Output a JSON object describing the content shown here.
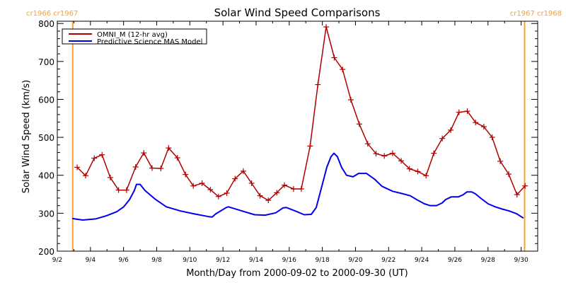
{
  "chart_data": {
    "type": "line",
    "title": "Solar Wind Speed Comparisons",
    "xlabel": "Month/Day from 2000-09-02 to 2000-09-30 (UT)",
    "ylabel": "Solar Wind Speed (km/s)",
    "x_units": "day of September 2000",
    "xlim": [
      2,
      31
    ],
    "ylim": [
      200,
      806
    ],
    "grid": false,
    "legend_placement": "top-left",
    "y_ticks": [
      {
        "value": 200,
        "label": "200"
      },
      {
        "value": 300,
        "label": "300"
      },
      {
        "value": 400,
        "label": "400"
      },
      {
        "value": 500,
        "label": "500"
      },
      {
        "value": 600,
        "label": "600"
      },
      {
        "value": 700,
        "label": "700"
      },
      {
        "value": 800,
        "label": "800"
      }
    ],
    "x_ticks": [
      {
        "value": 2,
        "label": "9/2"
      },
      {
        "value": 4,
        "label": "9/4"
      },
      {
        "value": 6,
        "label": "9/6"
      },
      {
        "value": 8,
        "label": "9/8"
      },
      {
        "value": 10,
        "label": "9/10"
      },
      {
        "value": 12,
        "label": "9/12"
      },
      {
        "value": 14,
        "label": "9/14"
      },
      {
        "value": 16,
        "label": "9/16"
      },
      {
        "value": 18,
        "label": "9/18"
      },
      {
        "value": 20,
        "label": "9/20"
      },
      {
        "value": 22,
        "label": "9/22"
      },
      {
        "value": 24,
        "label": "9/24"
      },
      {
        "value": 26,
        "label": "9/26"
      },
      {
        "value": 28,
        "label": "9/28"
      },
      {
        "value": 30,
        "label": "9/30"
      }
    ],
    "carrington_markers": [
      {
        "x": 2.93,
        "label": "cr1966 cr1967",
        "color": "#f8a030"
      },
      {
        "x": 30.21,
        "label": "cr1967 cr1968",
        "color": "#f8a030"
      }
    ],
    "series": [
      {
        "name": "OMNI_M (12-hr avg)",
        "color": "#b00000",
        "marker": "plus",
        "x": [
          3.2,
          3.71,
          4.23,
          4.7,
          5.2,
          5.7,
          6.18,
          6.73,
          7.22,
          7.72,
          8.25,
          8.72,
          9.25,
          9.74,
          10.21,
          10.74,
          11.24,
          11.73,
          12.23,
          12.73,
          13.23,
          13.73,
          14.24,
          14.74,
          15.25,
          15.71,
          16.26,
          16.73,
          17.26,
          17.73,
          18.23,
          18.72,
          19.22,
          19.72,
          20.23,
          20.74,
          21.24,
          21.74,
          22.24,
          22.76,
          23.26,
          23.76,
          24.26,
          24.73,
          25.24,
          25.75,
          26.25,
          26.75,
          27.25,
          27.75,
          28.25,
          28.74,
          29.25,
          29.75,
          30.24
        ],
        "y": [
          421,
          399,
          445,
          454,
          394,
          361,
          361,
          422,
          459,
          419,
          418,
          472,
          446,
          402,
          372,
          379,
          362,
          344,
          353,
          391,
          411,
          379,
          346,
          334,
          354,
          374,
          364,
          364,
          477,
          639,
          791,
          710,
          679,
          599,
          535,
          483,
          457,
          451,
          458,
          438,
          417,
          410,
          399,
          458,
          497,
          519,
          566,
          569,
          539,
          528,
          500,
          437,
          403,
          349,
          372
        ]
      },
      {
        "name": "Predictive Science MAS Model",
        "color": "#0000f0",
        "marker": "none",
        "x": [
          2.9,
          3.54,
          4.31,
          4.95,
          5.59,
          6.01,
          6.36,
          6.65,
          6.78,
          7.0,
          7.29,
          7.94,
          8.58,
          9.43,
          10.28,
          11.14,
          11.35,
          11.56,
          12.2,
          12.33,
          13.06,
          13.91,
          14.55,
          15.19,
          15.62,
          15.83,
          16.47,
          16.9,
          17.33,
          17.63,
          17.97,
          18.27,
          18.52,
          18.7,
          18.91,
          19.16,
          19.46,
          19.85,
          20.19,
          20.66,
          21.17,
          21.6,
          22.24,
          22.88,
          23.31,
          23.73,
          24.16,
          24.5,
          24.89,
          25.23,
          25.44,
          25.78,
          26.21,
          26.51,
          26.72,
          27.02,
          27.24,
          27.58,
          28.0,
          28.43,
          28.86,
          29.28,
          29.71,
          30.14
        ],
        "y": [
          286,
          282,
          285,
          293,
          304,
          317,
          336,
          360,
          376,
          376,
          360,
          336,
          317,
          306,
          298,
          291,
          290,
          298,
          315,
          317,
          307,
          296,
          295,
          301,
          314,
          315,
          304,
          296,
          297,
          315,
          371,
          421,
          449,
          458,
          449,
          421,
          400,
          396,
          405,
          405,
          389,
          371,
          358,
          351,
          346,
          335,
          325,
          320,
          320,
          327,
          336,
          343,
          343,
          349,
          356,
          356,
          351,
          339,
          325,
          317,
          311,
          306,
          299,
          287
        ]
      }
    ]
  }
}
